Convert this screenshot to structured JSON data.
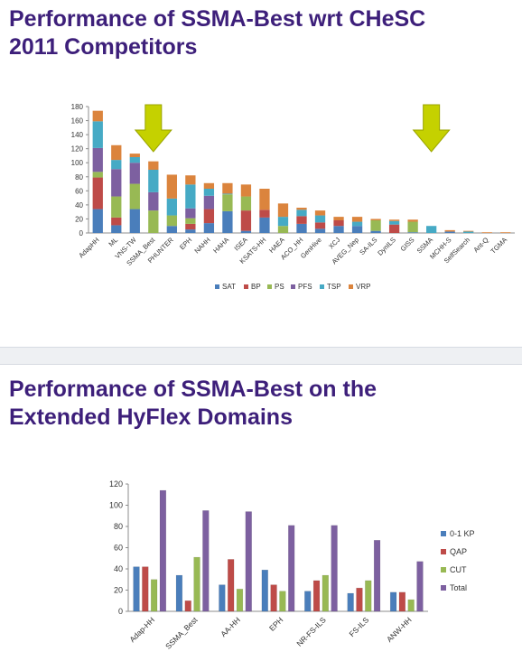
{
  "slides": [
    {
      "title": "Performance of SSMA-Best wrt  CHeSC\n2011 Competitors",
      "chart_data": {
        "type": "bar",
        "stacked": true,
        "categories": [
          "AdapHH",
          "ML",
          "VNS-TW",
          "SSMA_Best",
          "PHUNTER",
          "EPH",
          "NAHH",
          "HAHA",
          "ISEA",
          "KSATS-HH",
          "HAEA",
          "ACO_HH",
          "GenHive",
          "XCJ",
          "AVEG_Nep",
          "SA-ILS",
          "DynILS",
          "GISS",
          "SSMA",
          "MCHH-S",
          "SelfSearch",
          "Ant-Q",
          "TGMA"
        ],
        "series": [
          {
            "name": "SAT",
            "color": "#4a7ebb",
            "values": [
              34,
              11,
              34,
              0,
              10,
              5,
              14,
              31,
              3,
              22,
              0,
              13,
              6,
              10,
              10,
              3,
              0,
              1,
              0,
              2,
              0,
              0,
              0
            ]
          },
          {
            "name": "BP",
            "color": "#be4b48",
            "values": [
              45,
              11,
              0,
              0,
              0,
              8,
              20,
              0,
              29,
              11,
              0,
              11,
              9,
              8,
              0,
              0,
              12,
              0,
              0,
              0,
              0,
              0,
              0
            ]
          },
          {
            "name": "PS",
            "color": "#98b954",
            "values": [
              8,
              30,
              36,
              32,
              15,
              8,
              0,
              24,
              20,
              0,
              10,
              0,
              0,
              0,
              0,
              15,
              0,
              15,
              0,
              0,
              0,
              0,
              0
            ]
          },
          {
            "name": "PFS",
            "color": "#7d60a0",
            "values": [
              34,
              39,
              30,
              26,
              0,
              14,
              19,
              0,
              0,
              0,
              0,
              0,
              0,
              0,
              0,
              0,
              0,
              0,
              0,
              0,
              0,
              0,
              0
            ]
          },
          {
            "name": "TSP",
            "color": "#46aac5",
            "values": [
              38,
              13,
              8,
              32,
              24,
              34,
              10,
              1,
              0,
              0,
              13,
              9,
              10,
              0,
              6,
              0,
              5,
              0,
              10,
              0,
              2,
              0,
              0
            ]
          },
          {
            "name": "VRP",
            "color": "#db843d",
            "values": [
              15,
              21,
              5,
              12,
              34,
              13,
              8,
              15,
              17,
              30,
              19,
              3,
              7,
              5,
              7,
              2,
              2,
              3,
              0,
              2,
              1,
              1,
              1
            ]
          }
        ],
        "ylim": [
          0,
          180
        ],
        "yticks": [
          0,
          20,
          40,
          60,
          80,
          100,
          120,
          140,
          160,
          180
        ],
        "highlight_arrows": [
          "SSMA_Best",
          "SSMA"
        ],
        "arrow_color": "#c5d100",
        "legend_position": "bottom",
        "grid": false
      }
    },
    {
      "title": "Performance of SSMA-Best on the\nExtended HyFlex Domains",
      "chart_data": {
        "type": "bar",
        "categories": [
          "Adap-HH",
          "SSMA_Best",
          "AA-HH",
          "EPH",
          "NR-FS-ILS",
          "FS-ILS",
          "ANW-HH"
        ],
        "series": [
          {
            "name": "0-1 KP",
            "color": "#4a7ebb",
            "values": [
              42,
              34,
              25,
              39,
              19,
              17,
              18
            ]
          },
          {
            "name": "QAP",
            "color": "#be4b48",
            "values": [
              42,
              10,
              49,
              25,
              29,
              22,
              18
            ]
          },
          {
            "name": "CUT",
            "color": "#98b954",
            "values": [
              30,
              51,
              21,
              19,
              34,
              29,
              11
            ]
          },
          {
            "name": "Total",
            "color": "#7d60a0",
            "values": [
              114,
              95,
              94,
              81,
              81,
              67,
              47
            ]
          }
        ],
        "ylim": [
          0,
          120
        ],
        "yticks": [
          0,
          20,
          40,
          60,
          80,
          100,
          120
        ],
        "legend_position": "right",
        "grid": false
      }
    }
  ]
}
